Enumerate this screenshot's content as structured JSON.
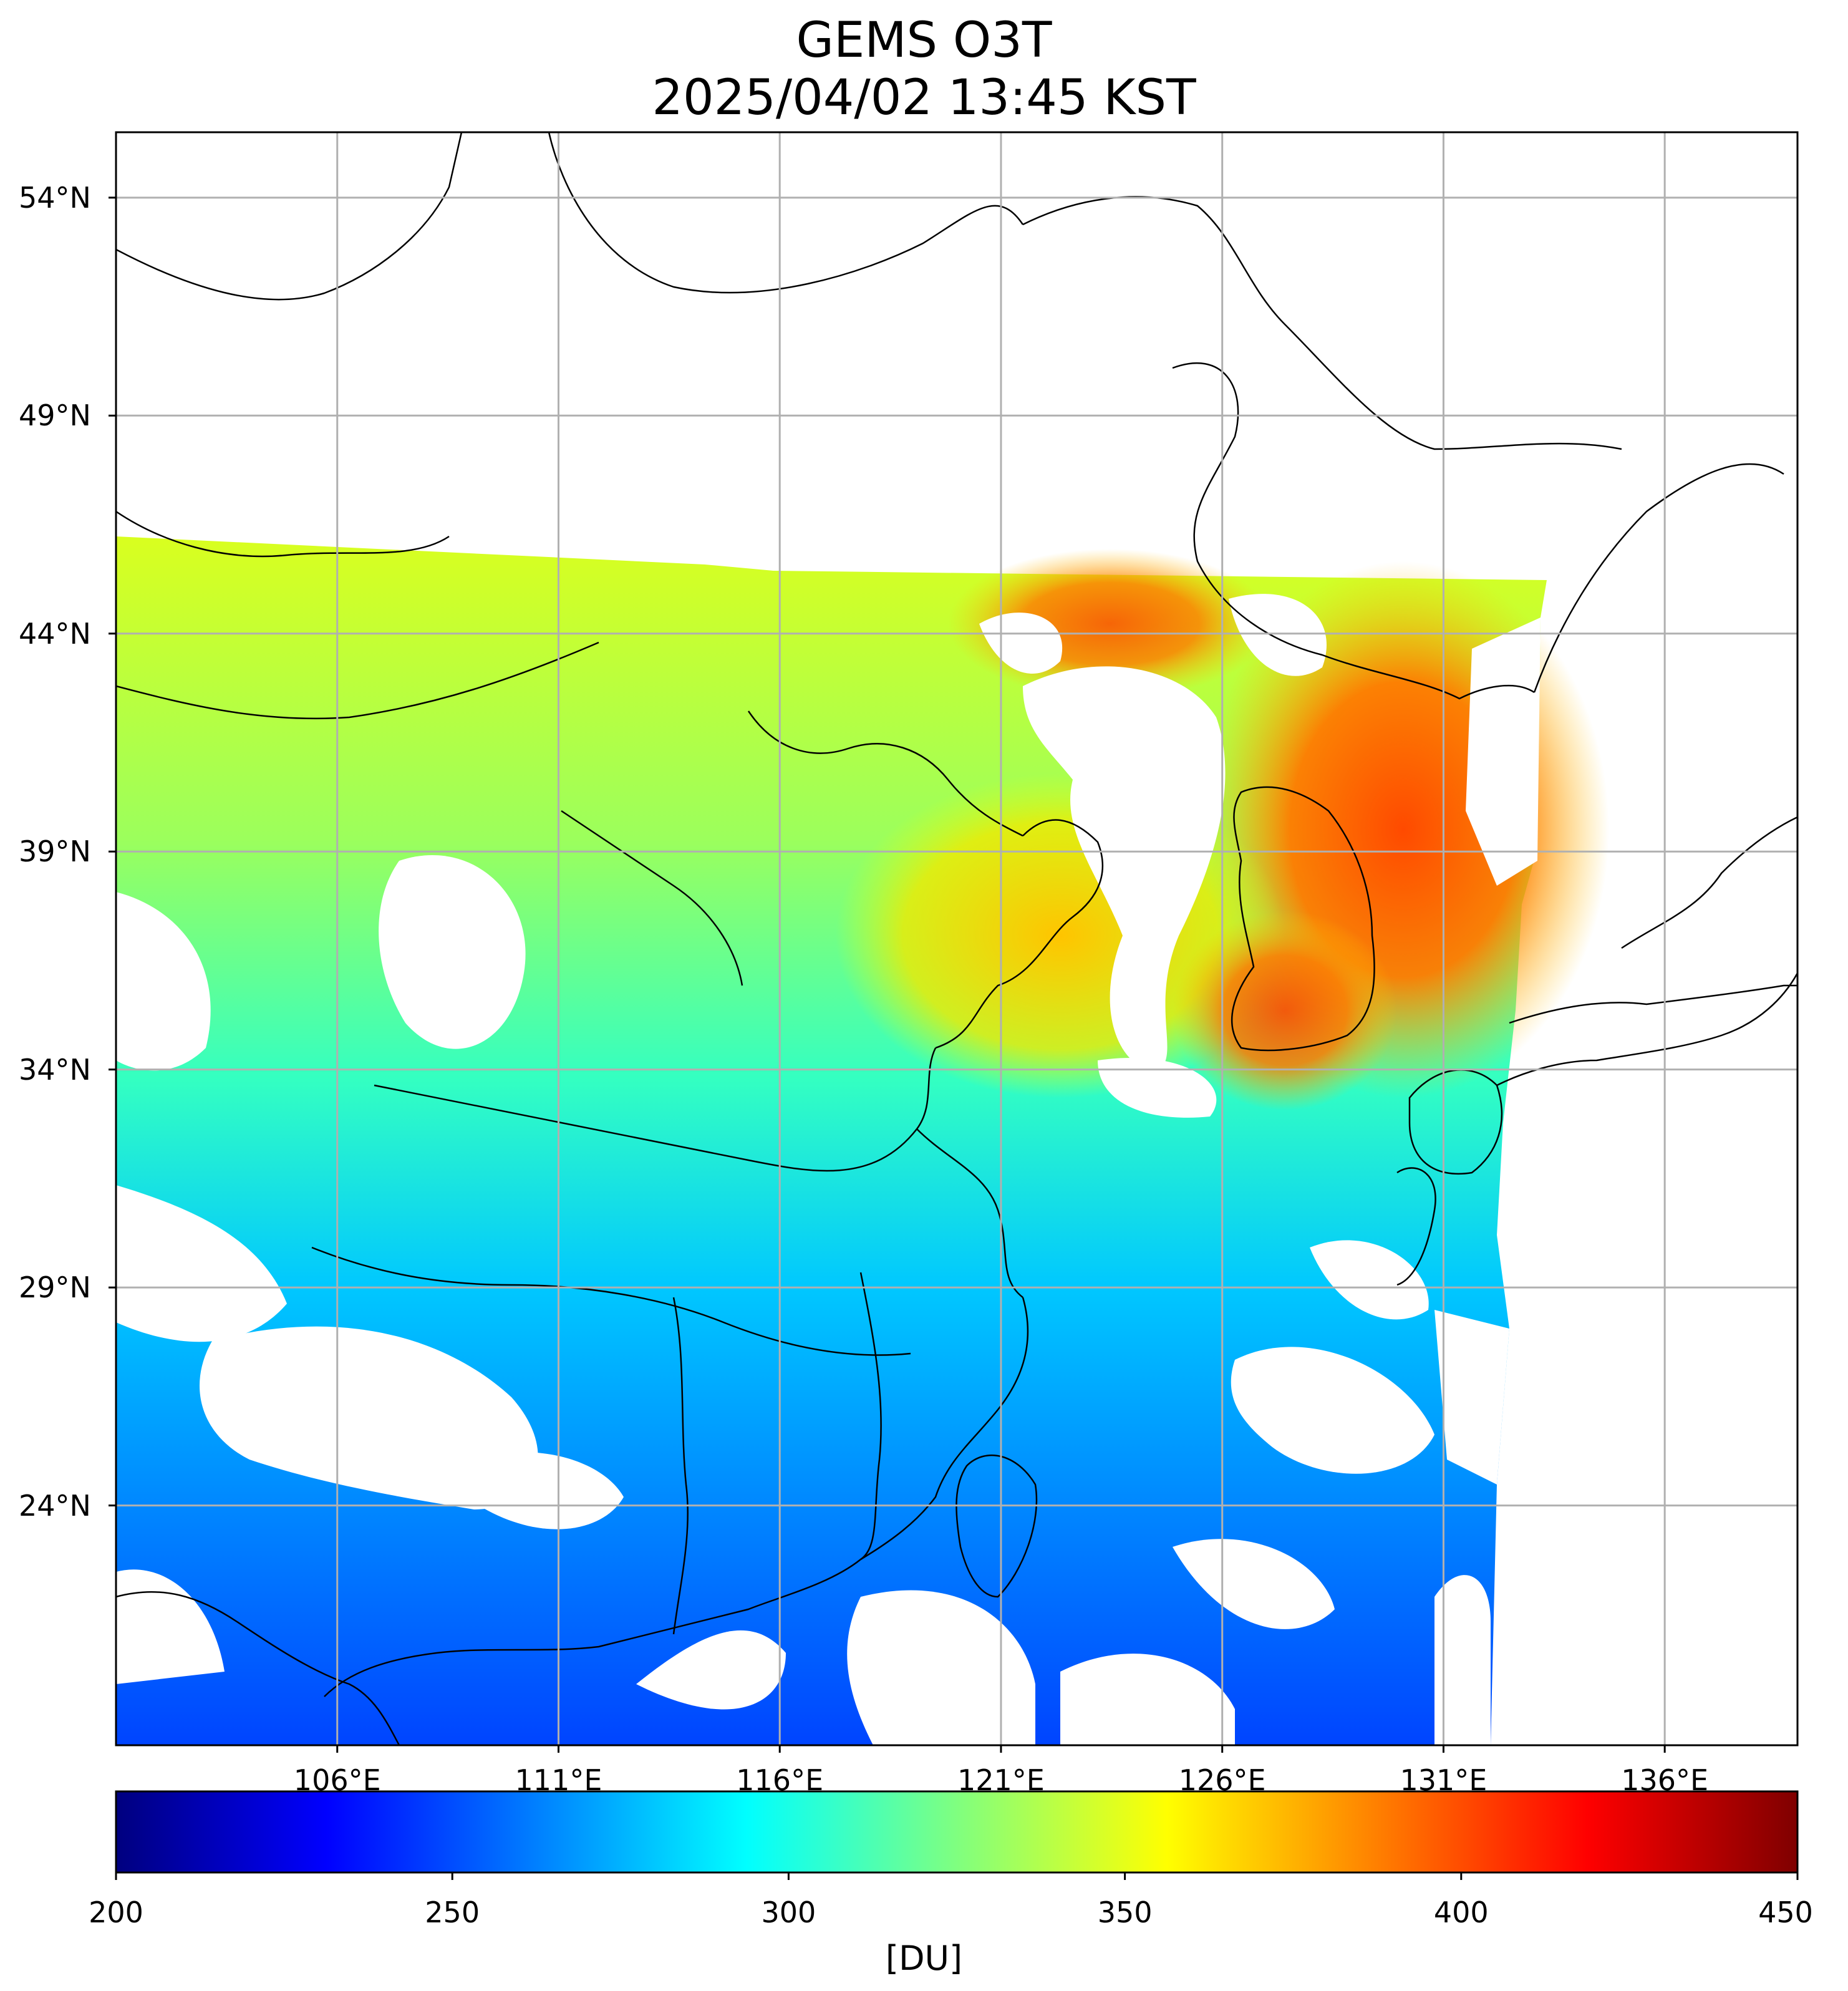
{
  "title": {
    "line1": "GEMS O3T",
    "line2": "2025/04/02 13:45 KST"
  },
  "map": {
    "lon_range": [
      101,
      139
    ],
    "lat_range": [
      18.5,
      55.5
    ],
    "lat_ticks": [
      {
        "value": 54,
        "label": "54°N"
      },
      {
        "value": 49,
        "label": "49°N"
      },
      {
        "value": 44,
        "label": "44°N"
      },
      {
        "value": 39,
        "label": "39°N"
      },
      {
        "value": 34,
        "label": "34°N"
      },
      {
        "value": 29,
        "label": "29°N"
      },
      {
        "value": 24,
        "label": "24°N"
      }
    ],
    "lon_ticks": [
      {
        "value": 106,
        "label": "106°E"
      },
      {
        "value": 111,
        "label": "111°E"
      },
      {
        "value": 116,
        "label": "116°E"
      },
      {
        "value": 121,
        "label": "121°E"
      },
      {
        "value": 126,
        "label": "126°E"
      },
      {
        "value": 131,
        "label": "131°E"
      },
      {
        "value": 136,
        "label": "136°E"
      }
    ],
    "gridlines": true,
    "grid_color": "#b0b0b0",
    "missing_color": "#ffffff",
    "coastline_color": "#000000"
  },
  "colorbar": {
    "label": "[DU]",
    "range": [
      200,
      450
    ],
    "colormap": "jet",
    "ticks": [
      {
        "value": 200,
        "label": "200"
      },
      {
        "value": 250,
        "label": "250"
      },
      {
        "value": 300,
        "label": "300"
      },
      {
        "value": 350,
        "label": "350"
      },
      {
        "value": 400,
        "label": "400"
      },
      {
        "value": 450,
        "label": "450"
      }
    ]
  }
}
